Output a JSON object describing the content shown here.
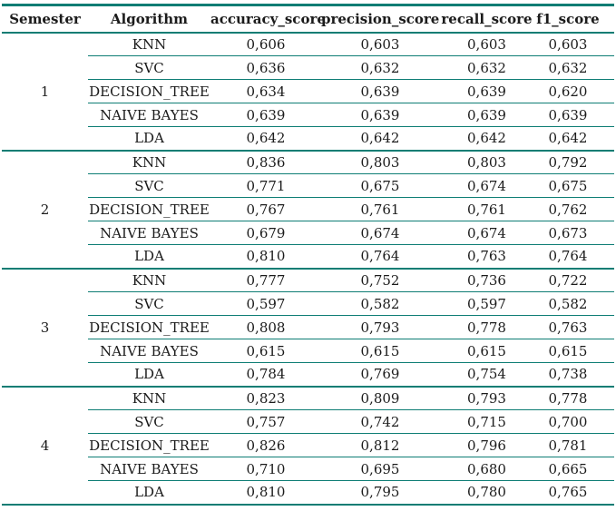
{
  "colors": {
    "accent": "#0d7d74",
    "text": "#1b1b1b",
    "background": "#ffffff"
  },
  "table": {
    "columns": [
      {
        "key": "semester",
        "label": "Semester"
      },
      {
        "key": "algorithm",
        "label": "Algorithm"
      },
      {
        "key": "accuracy_score",
        "label": "accuracy_score"
      },
      {
        "key": "precision_score",
        "label": "precision_score"
      },
      {
        "key": "recall_score",
        "label": "recall_score"
      },
      {
        "key": "f1_score",
        "label": "f1_score"
      }
    ],
    "value_keys": [
      "algorithm",
      "accuracy_score",
      "precision_score",
      "recall_score",
      "f1_score"
    ],
    "groups": [
      {
        "semester": "1",
        "rows": [
          {
            "algorithm": "KNN",
            "accuracy_score": "0,606",
            "precision_score": "0,603",
            "recall_score": "0,603",
            "f1_score": "0,603"
          },
          {
            "algorithm": "SVC",
            "accuracy_score": "0,636",
            "precision_score": "0,632",
            "recall_score": "0,632",
            "f1_score": "0,632"
          },
          {
            "algorithm": "DECISION_TREE",
            "accuracy_score": "0,634",
            "precision_score": "0,639",
            "recall_score": "0,639",
            "f1_score": "0,620"
          },
          {
            "algorithm": "NAIVE BAYES",
            "accuracy_score": "0,639",
            "precision_score": "0,639",
            "recall_score": "0,639",
            "f1_score": "0,639"
          },
          {
            "algorithm": "LDA",
            "accuracy_score": "0,642",
            "precision_score": "0,642",
            "recall_score": "0,642",
            "f1_score": "0,642"
          }
        ]
      },
      {
        "semester": "2",
        "rows": [
          {
            "algorithm": "KNN",
            "accuracy_score": "0,836",
            "precision_score": "0,803",
            "recall_score": "0,803",
            "f1_score": "0,792"
          },
          {
            "algorithm": "SVC",
            "accuracy_score": "0,771",
            "precision_score": "0,675",
            "recall_score": "0,674",
            "f1_score": "0,675"
          },
          {
            "algorithm": "DECISION_TREE",
            "accuracy_score": "0,767",
            "precision_score": "0,761",
            "recall_score": "0,761",
            "f1_score": "0,762"
          },
          {
            "algorithm": "NAIVE BAYES",
            "accuracy_score": "0,679",
            "precision_score": "0,674",
            "recall_score": "0,674",
            "f1_score": "0,673"
          },
          {
            "algorithm": "LDA",
            "accuracy_score": "0,810",
            "precision_score": "0,764",
            "recall_score": "0,763",
            "f1_score": "0,764"
          }
        ]
      },
      {
        "semester": "3",
        "rows": [
          {
            "algorithm": "KNN",
            "accuracy_score": "0,777",
            "precision_score": "0,752",
            "recall_score": "0,736",
            "f1_score": "0,722"
          },
          {
            "algorithm": "SVC",
            "accuracy_score": "0,597",
            "precision_score": "0,582",
            "recall_score": "0,597",
            "f1_score": "0,582"
          },
          {
            "algorithm": "DECISION_TREE",
            "accuracy_score": "0,808",
            "precision_score": "0,793",
            "recall_score": "0,778",
            "f1_score": "0,763"
          },
          {
            "algorithm": "NAIVE BAYES",
            "accuracy_score": "0,615",
            "precision_score": "0,615",
            "recall_score": "0,615",
            "f1_score": "0,615"
          },
          {
            "algorithm": "LDA",
            "accuracy_score": "0,784",
            "precision_score": "0,769",
            "recall_score": "0,754",
            "f1_score": "0,738"
          }
        ]
      },
      {
        "semester": "4",
        "rows": [
          {
            "algorithm": "KNN",
            "accuracy_score": "0,823",
            "precision_score": "0,809",
            "recall_score": "0,793",
            "f1_score": "0,778"
          },
          {
            "algorithm": "SVC",
            "accuracy_score": "0,757",
            "precision_score": "0,742",
            "recall_score": "0,715",
            "f1_score": "0,700"
          },
          {
            "algorithm": "DECISION_TREE",
            "accuracy_score": "0,826",
            "precision_score": "0,812",
            "recall_score": "0,796",
            "f1_score": "0,781"
          },
          {
            "algorithm": "NAIVE BAYES",
            "accuracy_score": "0,710",
            "precision_score": "0,695",
            "recall_score": "0,680",
            "f1_score": "0,665"
          },
          {
            "algorithm": "LDA",
            "accuracy_score": "0,810",
            "precision_score": "0,795",
            "recall_score": "0,780",
            "f1_score": "0,765"
          }
        ]
      }
    ]
  }
}
